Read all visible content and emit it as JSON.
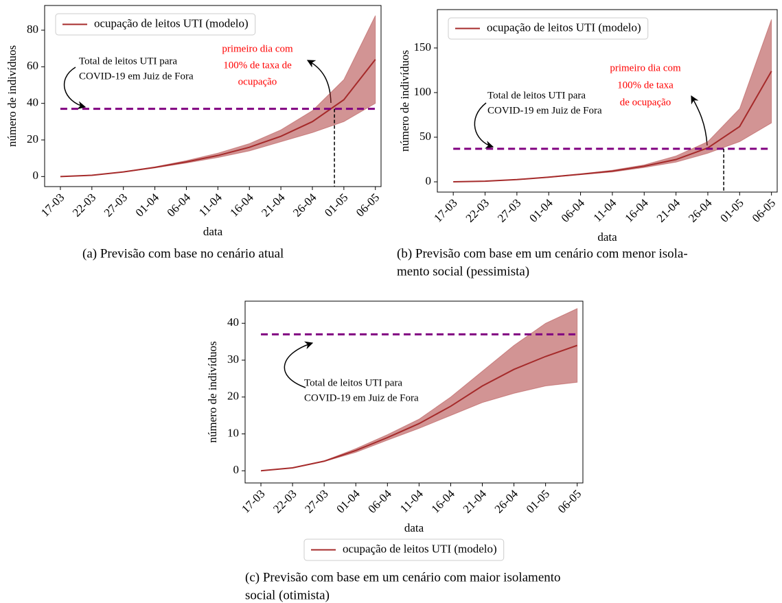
{
  "chart_data": [
    {
      "type": "line",
      "xlabel": "data",
      "ylabel": "número de indivíduos",
      "x": [
        0,
        5,
        10,
        15,
        20,
        25,
        30,
        35,
        40,
        45,
        50
      ],
      "xlim": [
        -2.5,
        50.9
      ],
      "xticks": [
        {
          "value": 0,
          "label": "17-03"
        },
        {
          "value": 5,
          "label": "22-03"
        },
        {
          "value": 10,
          "label": "27-03"
        },
        {
          "value": 15,
          "label": "01-04"
        },
        {
          "value": 20,
          "label": "06-04"
        },
        {
          "value": 25,
          "label": "11-04"
        },
        {
          "value": 30,
          "label": "16-04"
        },
        {
          "value": 35,
          "label": "21-04"
        },
        {
          "value": 40,
          "label": "26-04"
        },
        {
          "value": 45,
          "label": "01-05"
        },
        {
          "value": 50,
          "label": "06-05"
        }
      ],
      "ylim": [
        -5.5,
        93.5
      ],
      "yticks": [
        0,
        20,
        40,
        60,
        80
      ],
      "series": [
        {
          "name": "ocupação de leitos UTI (modelo)",
          "color": "#a52a2a",
          "values": [
            0,
            0.7,
            2.5,
            5,
            8,
            11.5,
            16,
            22,
            30,
            42,
            64
          ],
          "lower": [
            0,
            0.7,
            2.4,
            4.7,
            7.4,
            10.4,
            14,
            19,
            24,
            30,
            40
          ],
          "upper": [
            0,
            0.7,
            2.6,
            5.3,
            8.7,
            12.8,
            18,
            25.5,
            36,
            53,
            88
          ]
        }
      ],
      "capacity": 37,
      "capacity_color": "#800080",
      "vline_x": 43.5,
      "legend": "upper left",
      "annotations": [
        {
          "text": [
            "Total de leitos UTI para",
            "COVID-19 em Juiz de Fora"
          ],
          "color": "#000000"
        },
        {
          "text": [
            "primeiro dia com",
            "100% de taxa de",
            "ocupação"
          ],
          "color": "#ff0000"
        }
      ],
      "caption": [
        "(a)  Previsão com base no cenário atual"
      ]
    },
    {
      "type": "line",
      "xlabel": "data",
      "ylabel": "número de indivíduos",
      "x": [
        0,
        5,
        10,
        15,
        20,
        25,
        30,
        35,
        40,
        45,
        50
      ],
      "xlim": [
        -2.5,
        50.9
      ],
      "xticks": [
        {
          "value": 0,
          "label": "17-03"
        },
        {
          "value": 5,
          "label": "22-03"
        },
        {
          "value": 10,
          "label": "27-03"
        },
        {
          "value": 15,
          "label": "01-04"
        },
        {
          "value": 20,
          "label": "06-04"
        },
        {
          "value": 25,
          "label": "11-04"
        },
        {
          "value": 30,
          "label": "16-04"
        },
        {
          "value": 35,
          "label": "21-04"
        },
        {
          "value": 40,
          "label": "26-04"
        },
        {
          "value": 45,
          "label": "01-05"
        },
        {
          "value": 50,
          "label": "06-05"
        }
      ],
      "ylim": [
        -11.5,
        193
      ],
      "yticks": [
        0,
        50,
        100,
        150
      ],
      "series": [
        {
          "name": "ocupação de leitos UTI (modelo)",
          "color": "#a52a2a",
          "values": [
            0,
            0.7,
            2.5,
            5.2,
            8.5,
            12,
            17.5,
            25,
            38,
            62,
            124
          ],
          "lower": [
            0,
            0.7,
            2.4,
            4.9,
            8,
            11,
            16,
            22,
            32,
            45,
            66
          ],
          "upper": [
            0,
            0.7,
            2.6,
            5.5,
            9,
            13,
            19,
            29,
            45,
            82,
            182
          ]
        }
      ],
      "capacity": 37,
      "capacity_color": "#800080",
      "vline_x": 42.5,
      "legend": "upper left",
      "annotations": [
        {
          "text": [
            "Total de leitos UTI para",
            "COVID-19 em Juiz de Fora"
          ],
          "color": "#000000"
        },
        {
          "text": [
            "primeiro dia com",
            "100% de taxa",
            "de ocupação"
          ],
          "color": "#ff0000"
        }
      ],
      "caption": [
        "(b)  Previsão com base em um cenário com menor isola-",
        "mento social (pessimista)"
      ]
    },
    {
      "type": "line",
      "xlabel": "data",
      "ylabel": "número de indivíduos",
      "x": [
        0,
        5,
        10,
        15,
        20,
        25,
        30,
        35,
        40,
        45,
        50
      ],
      "xlim": [
        -2.5,
        50.9
      ],
      "xticks": [
        {
          "value": 0,
          "label": "17-03"
        },
        {
          "value": 5,
          "label": "22-03"
        },
        {
          "value": 10,
          "label": "27-03"
        },
        {
          "value": 15,
          "label": "01-04"
        },
        {
          "value": 20,
          "label": "06-04"
        },
        {
          "value": 25,
          "label": "11-04"
        },
        {
          "value": 30,
          "label": "16-04"
        },
        {
          "value": 35,
          "label": "21-04"
        },
        {
          "value": 40,
          "label": "26-04"
        },
        {
          "value": 45,
          "label": "01-05"
        },
        {
          "value": 50,
          "label": "06-05"
        }
      ],
      "ylim": [
        -3.3,
        46
      ],
      "yticks": [
        0,
        10,
        20,
        30,
        40
      ],
      "series": [
        {
          "name": "ocupação de leitos UTI (modelo)",
          "color": "#a52a2a",
          "values": [
            0,
            0.8,
            2.6,
            5.5,
            9,
            12.8,
            17.5,
            23,
            27.5,
            31,
            34
          ],
          "lower": [
            0,
            0.8,
            2.5,
            5,
            8.3,
            11.5,
            15,
            18.5,
            21,
            23,
            24
          ],
          "upper": [
            0,
            0.8,
            2.7,
            6,
            9.8,
            14,
            20,
            27,
            34,
            40,
            44
          ]
        }
      ],
      "capacity": 37,
      "capacity_color": "#800080",
      "legend": "below",
      "annotations": [
        {
          "text": [
            "Total de leitos UTI para",
            "COVID-19 em Juiz de Fora"
          ],
          "color": "#000000"
        }
      ],
      "caption": [
        "(c)  Previsão com base em um cenário com maior isolamento",
        "social (otimista)"
      ]
    }
  ]
}
